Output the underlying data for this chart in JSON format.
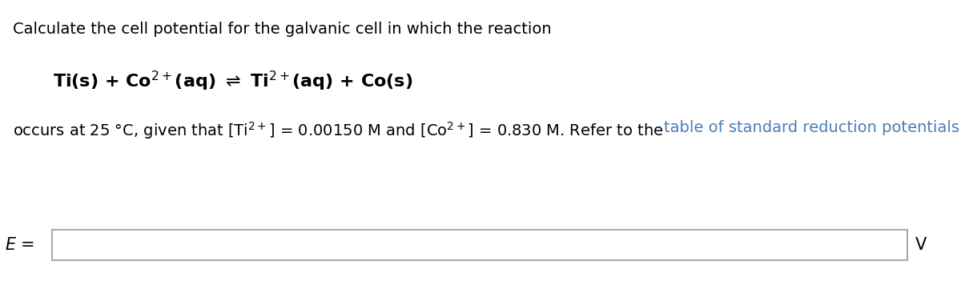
{
  "line1": "Calculate the cell potential for the galvanic cell in which the reaction",
  "equation": "Ti(s) + Co$^{2+}$(aq) $\\rightleftharpoons$ Ti$^{2+}$(aq) + Co(s)",
  "line3_black": "occurs at 25 °C, given that [Ti$^{2+}$] = 0.00150 M and [Co$^{2+}$] = 0.830 M. Refer to the ",
  "line3_link": "table of standard reduction potentials",
  "line3_dot": ".",
  "link_color": "#4a7fb5",
  "e_label": "$E$ =",
  "v_label": "V",
  "bg_color": "#ffffff",
  "text_color": "#000000",
  "box_edge_color": "#aaaaaa",
  "font_size": 14,
  "equation_font_size": 16
}
